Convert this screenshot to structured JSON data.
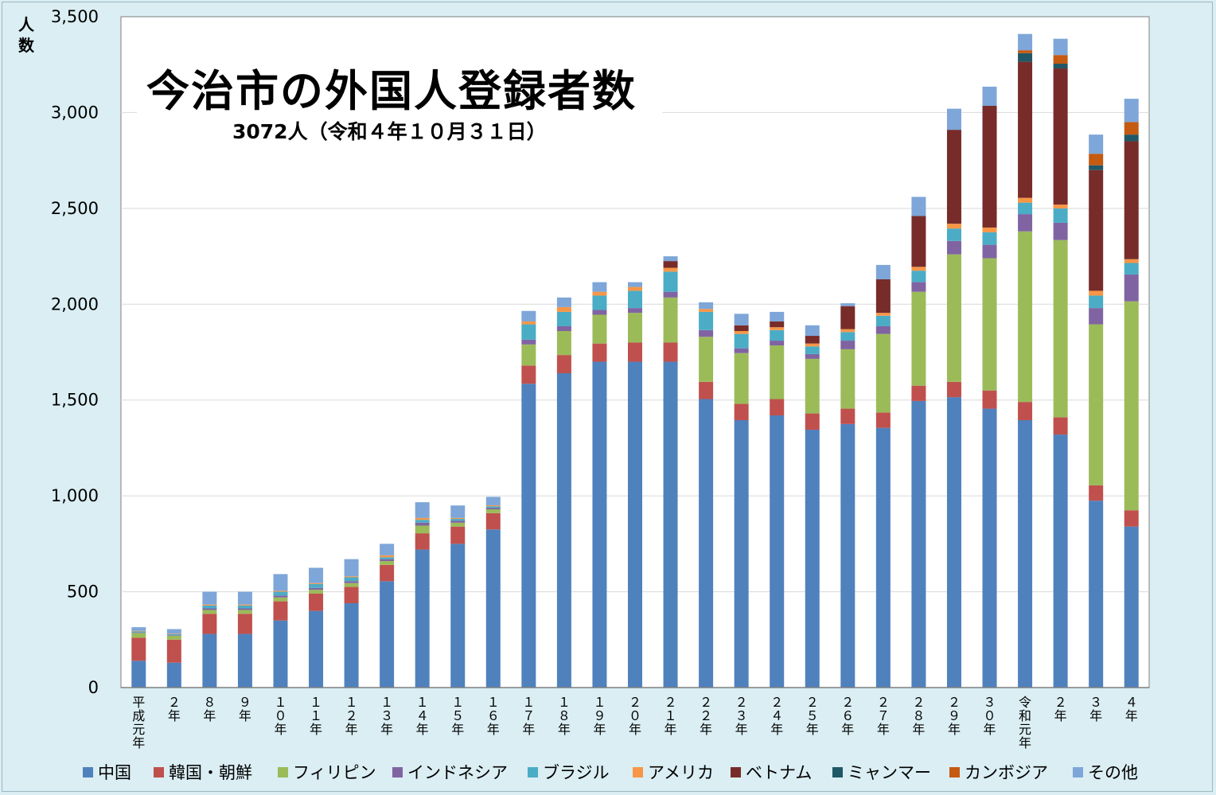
{
  "chart_data": {
    "type": "bar",
    "stacked": true,
    "title": "今治市の外国人登録者数",
    "subtitle": "3072人（令和４年１０月３１日）",
    "ylabel": "人数",
    "ylim": [
      0,
      3500
    ],
    "yticks": [
      0,
      500,
      1000,
      1500,
      2000,
      2500,
      3000,
      3500
    ],
    "ytick_labels": [
      "0",
      "500",
      "1,000",
      "1,500",
      "2,000",
      "2,500",
      "3,000",
      "3,500"
    ],
    "grid": true,
    "legend_position": "bottom",
    "categories": [
      "平成元年",
      "２年",
      "８年",
      "９年",
      "１０年",
      "１１年",
      "１２年",
      "１３年",
      "１４年",
      "１５年",
      "１６年",
      "１７年",
      "１８年",
      "１９年",
      "２０年",
      "２１年",
      "２２年",
      "２３年",
      "２４年",
      "２５年",
      "２６年",
      "２７年",
      "２８年",
      "２９年",
      "３０年",
      "令和元年",
      "２年",
      "３年",
      "４年"
    ],
    "series": [
      {
        "name": "中国",
        "color": "#4f81bd",
        "values": [
          140,
          130,
          280,
          280,
          350,
          400,
          440,
          555,
          720,
          750,
          825,
          1585,
          1640,
          1700,
          1700,
          1700,
          1505,
          1395,
          1420,
          1345,
          1375,
          1355,
          1495,
          1515,
          1455,
          1395,
          1320,
          975,
          840
        ]
      },
      {
        "name": "韓国・朝鮮",
        "color": "#c0504d",
        "values": [
          120,
          120,
          105,
          105,
          100,
          90,
          85,
          85,
          85,
          90,
          85,
          95,
          95,
          95,
          100,
          100,
          90,
          85,
          85,
          85,
          80,
          80,
          80,
          80,
          95,
          95,
          90,
          80,
          85
        ]
      },
      {
        "name": "フィリピン",
        "color": "#9bbb59",
        "values": [
          25,
          20,
          20,
          20,
          20,
          20,
          20,
          20,
          40,
          20,
          20,
          110,
          125,
          150,
          155,
          235,
          235,
          265,
          280,
          285,
          310,
          410,
          490,
          665,
          690,
          890,
          925,
          840,
          1090
        ]
      },
      {
        "name": "インドネシア",
        "color": "#8064a2",
        "values": [
          3,
          3,
          8,
          8,
          10,
          10,
          10,
          10,
          15,
          10,
          8,
          25,
          25,
          25,
          25,
          30,
          35,
          25,
          25,
          25,
          45,
          40,
          50,
          70,
          70,
          90,
          90,
          85,
          140
        ]
      },
      {
        "name": "ブラジル",
        "color": "#4bacc6",
        "values": [
          5,
          5,
          15,
          15,
          20,
          20,
          20,
          10,
          15,
          10,
          8,
          80,
          75,
          75,
          90,
          105,
          95,
          75,
          55,
          40,
          45,
          55,
          60,
          65,
          65,
          60,
          75,
          65,
          60
        ]
      },
      {
        "name": "アメリカ",
        "color": "#f79646",
        "values": [
          3,
          3,
          5,
          5,
          5,
          5,
          5,
          10,
          10,
          5,
          5,
          15,
          25,
          20,
          20,
          20,
          15,
          15,
          15,
          15,
          15,
          15,
          20,
          25,
          25,
          25,
          20,
          25,
          20
        ]
      },
      {
        "name": "ベトナム",
        "color": "#772c2a",
        "values": [
          0,
          0,
          0,
          0,
          0,
          0,
          0,
          0,
          0,
          0,
          0,
          0,
          0,
          0,
          0,
          35,
          0,
          30,
          30,
          40,
          120,
          175,
          265,
          490,
          635,
          710,
          710,
          630,
          615
        ]
      },
      {
        "name": "ミャンマー",
        "color": "#215867",
        "values": [
          0,
          0,
          0,
          0,
          0,
          0,
          0,
          0,
          0,
          0,
          0,
          0,
          0,
          0,
          0,
          0,
          0,
          0,
          0,
          0,
          0,
          0,
          0,
          0,
          0,
          45,
          25,
          25,
          35
        ]
      },
      {
        "name": "カンボジア",
        "color": "#c55a11",
        "values": [
          0,
          0,
          0,
          0,
          0,
          0,
          0,
          0,
          0,
          0,
          0,
          0,
          0,
          0,
          0,
          0,
          0,
          0,
          0,
          0,
          0,
          0,
          0,
          0,
          0,
          15,
          45,
          60,
          65
        ]
      },
      {
        "name": "その他",
        "color": "#7ea6d8",
        "values": [
          19,
          24,
          67,
          67,
          87,
          80,
          90,
          60,
          82,
          65,
          44,
          55,
          50,
          50,
          25,
          25,
          35,
          60,
          50,
          55,
          15,
          75,
          100,
          110,
          100,
          85,
          85,
          100,
          122
        ]
      }
    ]
  }
}
